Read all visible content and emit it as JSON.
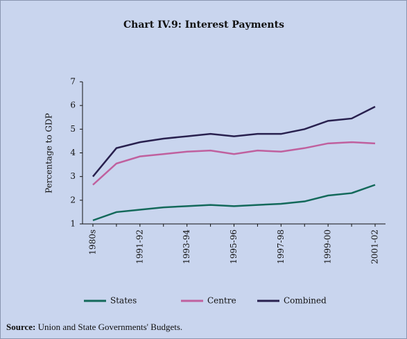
{
  "chart_data": {
    "type": "line",
    "title": "Chart IV.9: Interest Payments",
    "y_label": "Percentage to GDP",
    "categories": [
      "1980s",
      null,
      "1991-92",
      null,
      "1993-94",
      null,
      "1995-96",
      null,
      "1997-98",
      null,
      "1999-00",
      null,
      "2001-02"
    ],
    "series": [
      {
        "name": "States",
        "color": "#13695a",
        "values": [
          1.15,
          1.5,
          1.6,
          1.7,
          1.75,
          1.8,
          1.75,
          1.8,
          1.85,
          1.95,
          2.2,
          2.3,
          2.65
        ]
      },
      {
        "name": "Centre",
        "color": "#c0609e",
        "values": [
          2.65,
          3.55,
          3.85,
          3.95,
          4.05,
          4.1,
          3.95,
          4.1,
          4.05,
          4.2,
          4.4,
          4.45,
          4.4
        ]
      },
      {
        "name": "Combined",
        "color": "#28204e",
        "values": [
          3.0,
          4.2,
          4.45,
          4.6,
          4.7,
          4.8,
          4.7,
          4.8,
          4.8,
          5.0,
          5.35,
          5.45,
          5.95
        ]
      }
    ],
    "ylim": [
      1,
      7
    ],
    "yticks": [
      1,
      2,
      3,
      4,
      5,
      6,
      7
    ],
    "grid": false,
    "legend": "bottom"
  },
  "source": {
    "label": "Source:",
    "text": "Union and State Governments' Budgets."
  }
}
